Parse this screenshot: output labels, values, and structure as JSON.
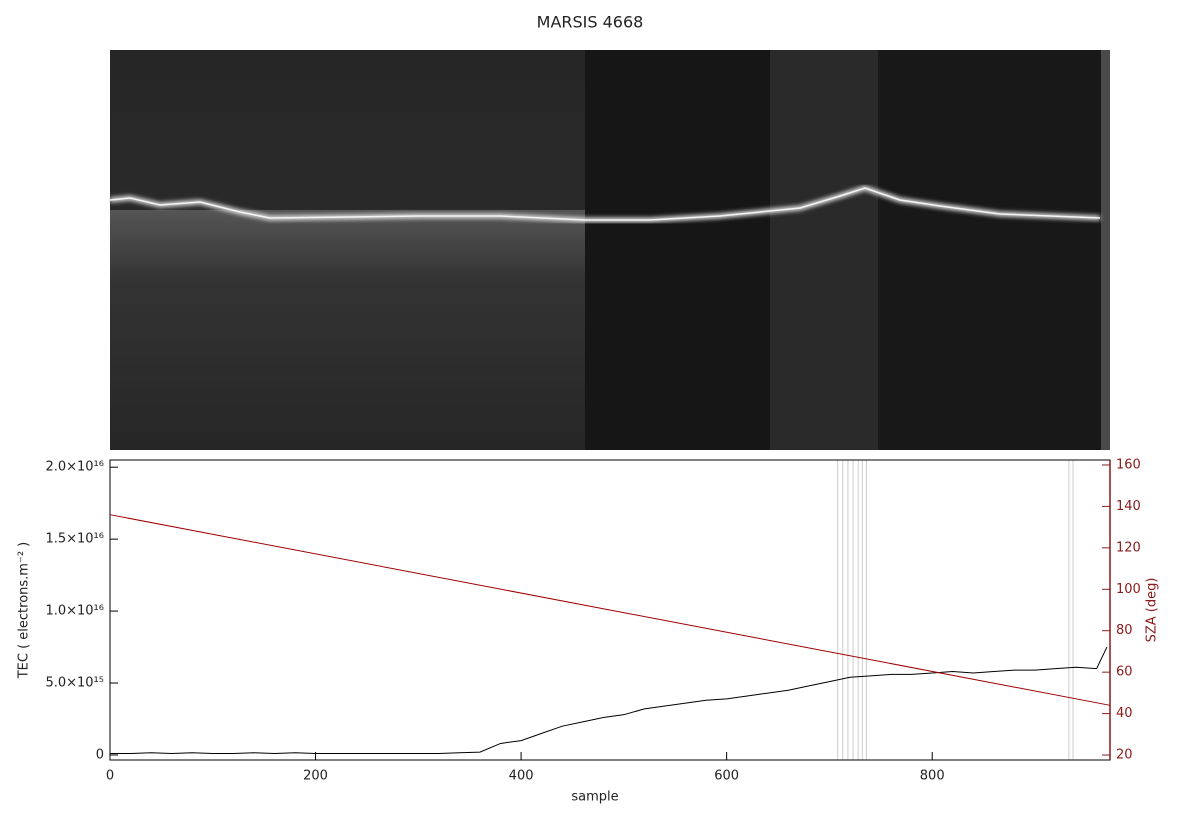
{
  "chart_data": {
    "type": "line",
    "title": "MARSIS 4668",
    "x_label": "sample",
    "y_label": "TEC ( electrons.m⁻² )",
    "y2_label": "SZA (deg)",
    "xlim": [
      0,
      973
    ],
    "xticks": [
      0,
      200,
      400,
      600,
      800
    ],
    "ylim": [
      -350000000000000,
      20500000000000000
    ],
    "yticks": [
      {
        "value": 0,
        "label": "0"
      },
      {
        "value": 5000000000000000,
        "label": "5.0×10¹⁵"
      },
      {
        "value": 10000000000000000,
        "label": "1.0×10¹⁶"
      },
      {
        "value": 15000000000000000,
        "label": "1.5×10¹⁶"
      },
      {
        "value": 20000000000000000,
        "label": "2.0×10¹⁶"
      }
    ],
    "y2lim": [
      17.6,
      162.4
    ],
    "y2ticks": [
      20,
      40,
      60,
      80,
      100,
      120,
      140,
      160
    ],
    "y2_color": "#8b1a1a",
    "markers_x": [
      708,
      713,
      718,
      723,
      728,
      732,
      736,
      933,
      937
    ],
    "marker_color": "#cccccc",
    "series": [
      {
        "color": "#000000",
        "axis": "y",
        "x": [
          0,
          20,
          40,
          60,
          80,
          100,
          120,
          140,
          160,
          180,
          200,
          220,
          240,
          260,
          280,
          300,
          320,
          340,
          360,
          380,
          400,
          420,
          440,
          460,
          480,
          500,
          520,
          540,
          560,
          580,
          600,
          620,
          640,
          660,
          680,
          700,
          720,
          740,
          760,
          780,
          800,
          820,
          840,
          860,
          880,
          900,
          920,
          940,
          960,
          970
        ],
        "values": [
          100000000000000,
          100000000000000,
          150000000000000,
          100000000000000,
          150000000000000,
          100000000000000,
          100000000000000,
          150000000000000,
          100000000000000,
          150000000000000,
          100000000000000,
          100000000000000,
          100000000000000,
          100000000000000,
          100000000000000,
          100000000000000,
          100000000000000,
          150000000000000,
          200000000000000,
          800000000000000,
          1000000000000000,
          1500000000000000,
          2000000000000000,
          2300000000000000,
          2600000000000000,
          2800000000000000,
          3200000000000000,
          3400000000000000,
          3600000000000000,
          3800000000000000,
          3900000000000000,
          4100000000000000,
          4300000000000000,
          4500000000000000,
          4800000000000000,
          5100000000000000,
          5400000000000000,
          5500000000000000,
          5600000000000000,
          5600000000000000,
          5700000000000000,
          5800000000000000,
          5700000000000000,
          5800000000000000,
          5900000000000000,
          5900000000000000,
          6000000000000000,
          6100000000000000,
          6000000000000000,
          7500000000000000
        ]
      },
      {
        "color": "#a00000",
        "axis": "y2",
        "x": [
          0,
          973
        ],
        "values": [
          136,
          44
        ]
      }
    ]
  }
}
